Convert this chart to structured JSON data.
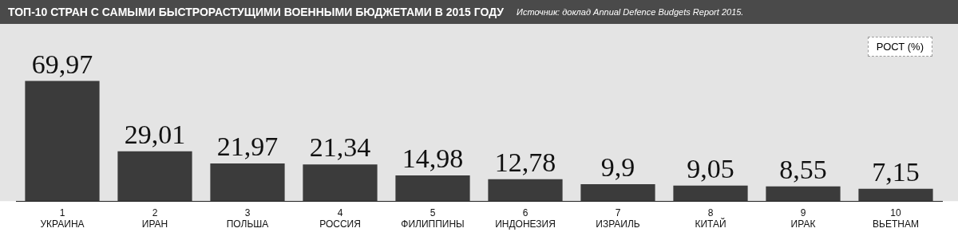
{
  "chart_data": {
    "type": "bar",
    "title": "ТОП-10 СТРАН С САМЫМИ БЫСТРОРАСТУЩИМИ ВОЕННЫМИ БЮДЖЕТАМИ В 2015 ГОДУ",
    "annotations": [
      "Источник: доклад Annual Defence Budgets Report 2015."
    ],
    "ylabel": "РОСТ (%)",
    "categories": [
      "1\nУКРАИНА",
      "2\nИРАН",
      "3\nПОЛЬША",
      "4\nРОССИЯ",
      "5\nФИЛИППИНЫ",
      "6\nИНДОНЕЗИЯ",
      "7\nИЗРАИЛЬ",
      "8\nКИТАЙ",
      "9\nИРАК",
      "10\nВЬЕТНАМ"
    ],
    "values": [
      69.97,
      29.01,
      21.97,
      21.34,
      14.98,
      12.78,
      9.9,
      9.05,
      8.55,
      7.15
    ],
    "value_labels": [
      "69,97",
      "29,01",
      "21,97",
      "21,34",
      "14,98",
      "12,78",
      "9,9",
      "9,05",
      "8,55",
      "7,15"
    ],
    "color": "#3b3b3b",
    "grid": false,
    "legend": false
  }
}
